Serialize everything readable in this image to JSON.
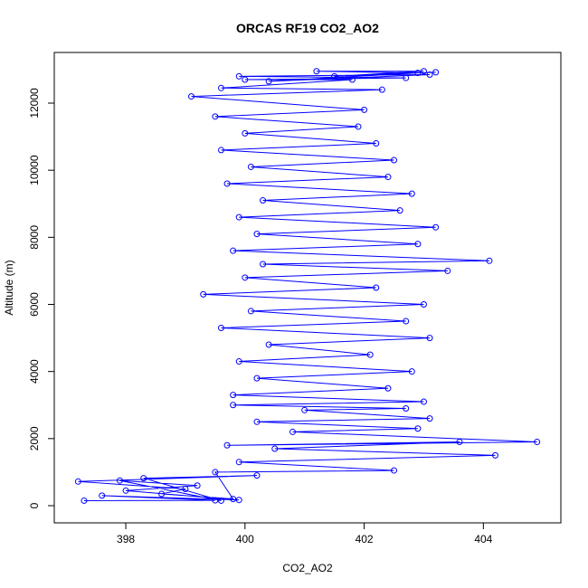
{
  "chart_data": {
    "type": "scatter",
    "title": "ORCAS RF19 CO2_AO2",
    "xlabel": "CO2_AO2",
    "ylabel": "Altitude (m)",
    "xlim": [
      396.8,
      405.3
    ],
    "ylim": [
      -512,
      13510
    ],
    "xticks": [
      398,
      400,
      402,
      404
    ],
    "yticks": [
      0,
      2000,
      4000,
      6000,
      8000,
      10000,
      12000
    ],
    "series": [
      {
        "color": "#0000ff",
        "x": [
          397.3,
          399.5,
          397.6,
          399.9,
          398.0,
          399.2,
          397.9,
          399.6,
          398.3,
          400.2,
          397.2,
          399.0,
          398.6,
          399.8,
          399.5,
          402.5,
          399.9,
          404.2,
          400.5,
          403.6,
          399.7,
          404.9,
          400.8,
          402.9,
          400.2,
          403.1,
          401.0,
          402.7,
          399.8,
          403.0,
          399.8,
          402.4,
          400.2,
          402.8,
          399.9,
          402.1,
          400.4,
          403.1,
          399.6,
          402.7,
          400.1,
          403.0,
          399.3,
          402.2,
          400.0,
          403.4,
          400.3,
          404.1,
          399.8,
          402.9,
          400.2,
          403.2,
          399.9,
          402.6,
          400.3,
          402.8,
          399.7,
          402.4,
          400.1,
          402.5,
          399.6,
          402.2,
          400.0,
          401.9,
          399.5,
          402.0,
          399.1,
          402.3,
          399.6,
          401.8,
          400.0,
          402.7,
          399.9,
          403.1,
          400.4,
          402.9,
          401.2,
          403.0,
          401.5,
          403.2
        ],
        "values": [
          150,
          160,
          300,
          170,
          450,
          600,
          750,
          150,
          820,
          900,
          720,
          500,
          350,
          200,
          1000,
          1050,
          1300,
          1500,
          1700,
          1900,
          1800,
          1900,
          2200,
          2300,
          2500,
          2600,
          2850,
          2900,
          3000,
          3100,
          3300,
          3500,
          3800,
          4000,
          4300,
          4500,
          4800,
          5000,
          5300,
          5500,
          5800,
          6000,
          6300,
          6500,
          6800,
          7000,
          7200,
          7300,
          7600,
          7800,
          8100,
          8300,
          8600,
          8800,
          9100,
          9300,
          9600,
          9800,
          10100,
          10300,
          10600,
          10800,
          11100,
          11300,
          11600,
          11800,
          12200,
          12400,
          12450,
          12700,
          12700,
          12750,
          12800,
          12850,
          12650,
          12900,
          12950,
          12950,
          12800,
          12920
        ]
      }
    ]
  }
}
